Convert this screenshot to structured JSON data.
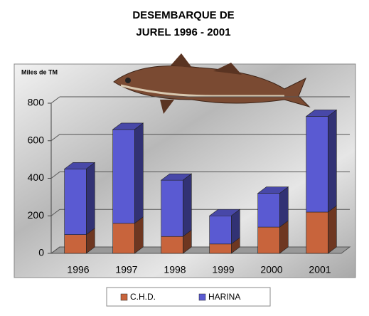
{
  "chart_data": {
    "type": "bar",
    "stacked": true,
    "title": [
      "DESEMBARQUE DE",
      "JUREL 1996 - 2001"
    ],
    "y_label": "Miles de TM",
    "categories": [
      "1996",
      "1997",
      "1998",
      "1999",
      "2000",
      "2001"
    ],
    "series": [
      {
        "name": "C.H.D.",
        "color": "#c8643c",
        "values": [
          100,
          160,
          90,
          50,
          140,
          220
        ]
      },
      {
        "name": "HARINA",
        "color": "#5a5ad2",
        "values": [
          350,
          500,
          300,
          150,
          180,
          510
        ]
      }
    ],
    "ylim": [
      0,
      800
    ],
    "yticks": [
      0,
      200,
      400,
      600,
      800
    ],
    "grid": true
  }
}
